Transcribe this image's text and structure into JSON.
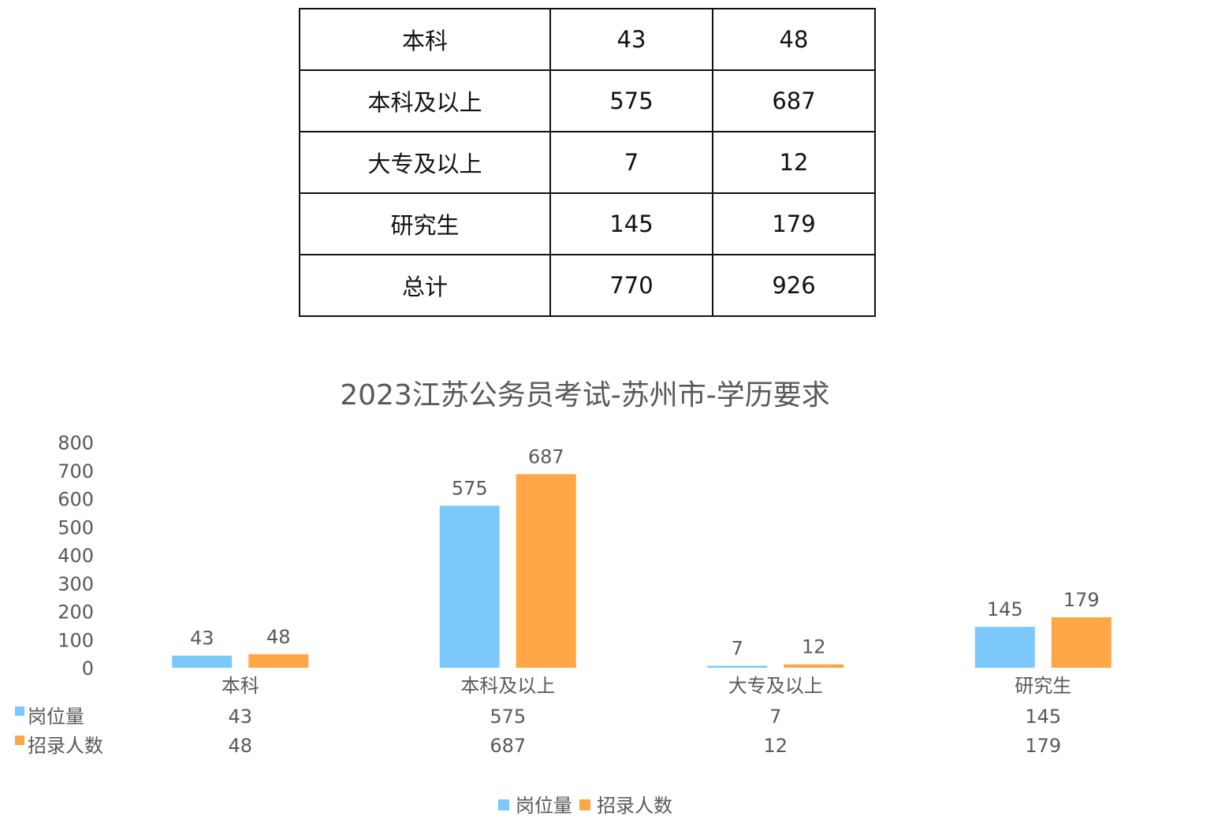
{
  "table": {
    "rows": [
      {
        "label": "本科",
        "positions": "43",
        "recruits": "48"
      },
      {
        "label": "本科及以上",
        "positions": "575",
        "recruits": "687"
      },
      {
        "label": "大专及以上",
        "positions": "7",
        "recruits": "12"
      },
      {
        "label": "研究生",
        "positions": "145",
        "recruits": "179"
      },
      {
        "label": "总计",
        "positions": "770",
        "recruits": "926"
      }
    ]
  },
  "chart_data": {
    "type": "bar",
    "title": "2023江苏公务员考试-苏州市-学历要求",
    "categories": [
      "本科",
      "本科及以上",
      "大专及以上",
      "研究生"
    ],
    "series": [
      {
        "name": "岗位量",
        "values": [
          43,
          575,
          7,
          145
        ],
        "color": "#7DC8FA"
      },
      {
        "name": "招录人数",
        "values": [
          48,
          687,
          12,
          179
        ],
        "color": "#FFA646"
      }
    ],
    "ylim": [
      0,
      800
    ],
    "yticks": [
      "0",
      "100",
      "200",
      "300",
      "400",
      "500",
      "600",
      "700",
      "800"
    ],
    "grid": false,
    "legend": "bottom",
    "data_table": true
  },
  "colors": {
    "text": "#595959",
    "title": "#595959"
  }
}
